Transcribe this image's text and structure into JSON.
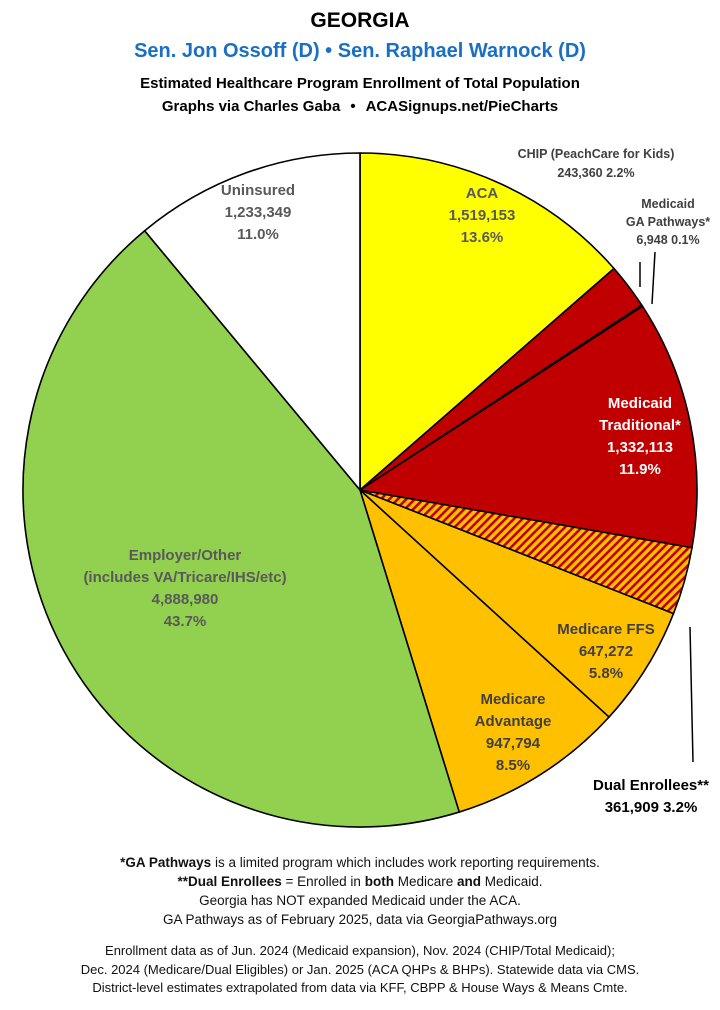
{
  "header": {
    "title": "GEORGIA",
    "senators": "Sen. Jon Ossoff (D) • Sen. Raphael Warnock (D)",
    "subtitle": "Estimated Healthcare Program Enrollment of Total Population",
    "credit_left": "Graphs via Charles Gaba",
    "credit_sep": "•",
    "credit_right": "ACASignups.net/PieCharts"
  },
  "chart_data": {
    "type": "pie",
    "title": "Estimated Healthcare Program Enrollment of Total Population",
    "start": "12 o'clock",
    "direction": "clockwise",
    "slices": [
      {
        "label": "ACA",
        "value": 1519153,
        "percent": "13.6%",
        "value_text": "1,519,153",
        "color": "#ffff00"
      },
      {
        "label": "CHIP (PeachCare for Kids)",
        "value": 243360,
        "percent": "2.2%",
        "value_text": "243,360",
        "color": "#c00000"
      },
      {
        "label": "Medicaid GA Pathways*",
        "value": 6948,
        "percent": "0.1%",
        "value_text": "6,948",
        "color": "#c00000"
      },
      {
        "label": "Medicaid Traditional*",
        "value": 1332113,
        "percent": "11.9%",
        "value_text": "1,332,113",
        "color": "#c00000"
      },
      {
        "label": "Dual Enrollees**",
        "value": 361909,
        "percent": "3.2%",
        "value_text": "361,909",
        "color": "#ffc000",
        "pattern": "hatched"
      },
      {
        "label": "Medicare FFS",
        "value": 647272,
        "percent": "5.8%",
        "value_text": "647,272",
        "color": "#ffc000"
      },
      {
        "label": "Medicare Advantage",
        "value": 947794,
        "percent": "8.5%",
        "value_text": "947,794",
        "color": "#ffc000"
      },
      {
        "label": "Employer/Other (includes VA/Tricare/IHS/etc)",
        "value": 4888980,
        "percent": "43.7%",
        "value_text": "4,888,980",
        "color": "#92d050"
      },
      {
        "label": "Uninsured",
        "value": 1233349,
        "percent": "11.0%",
        "value_text": "1,233,349",
        "color": "#ffffff"
      }
    ],
    "labels": {
      "aca": [
        "ACA",
        "1,519,153",
        "13.6%"
      ],
      "chip": [
        "CHIP (PeachCare for Kids)",
        "243,360 2.2%"
      ],
      "pathways": [
        "Medicaid",
        "GA Pathways*",
        "6,948 0.1%"
      ],
      "traditional": [
        "Medicaid",
        "Traditional*",
        "1,332,113",
        "11.9%"
      ],
      "dual": [
        "Dual Enrollees**",
        "361,909 3.2%"
      ],
      "ffs": [
        "Medicare FFS",
        "647,272",
        "5.8%"
      ],
      "advantage": [
        "Medicare",
        "Advantage",
        "947,794",
        "8.5%"
      ],
      "employer": [
        "Employer/Other",
        "(includes VA/Tricare/IHS/etc)",
        "4,888,980",
        "43.7%"
      ],
      "uninsured": [
        "Uninsured",
        "1,233,349",
        "11.0%"
      ]
    }
  },
  "footnotes": {
    "pathways_bold": "*GA Pathways",
    "pathways_rest": " is a limited program which includes work reporting requirements.",
    "dual_bold": "**Dual Enrollees",
    "dual_mid1": " = Enrolled in ",
    "dual_both": "both",
    "dual_mid2": " Medicare ",
    "dual_and": "and",
    "dual_end": " Medicaid.",
    "line3": "Georgia has NOT expanded Medicaid under the ACA.",
    "line4": "GA Pathways as of February 2025, data via GeorgiaPathways.org"
  },
  "sources": {
    "line1": "Enrollment data as of Jun. 2024 (Medicaid expansion), Nov. 2024 (CHIP/Total Medicaid);",
    "line2": "Dec. 2024 (Medicare/Dual Eligibles) or Jan. 2025 (ACA QHPs & BHPs). Statewide data via CMS.",
    "line3": "District-level estimates extrapolated from data via KFF, CBPP & House Ways & Means Cmte."
  }
}
